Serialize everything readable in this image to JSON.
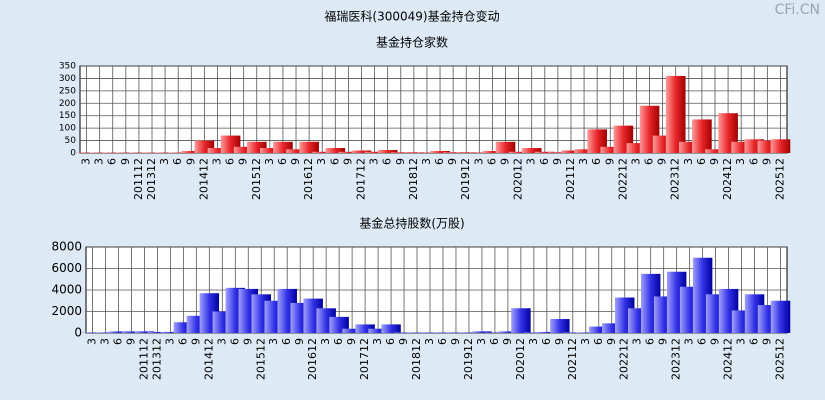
{
  "title": "福瑞医科(300049)基金持仓变动",
  "watermark": "CFi.CN",
  "chart_data": [
    {
      "type": "bar",
      "title": "基金持仓家数",
      "categories": [
        "3",
        "3",
        "6",
        "9",
        "201112",
        "201312",
        "3",
        "6",
        "9",
        "201412",
        "3",
        "6",
        "9",
        "201512",
        "3",
        "6",
        "9",
        "201612",
        "3",
        "6",
        "9",
        "201712",
        "3",
        "6",
        "9",
        "201812",
        "3",
        "6",
        "9",
        "201912",
        "3",
        "6",
        "9",
        "202012",
        "3",
        "6",
        "9",
        "202112",
        "3",
        "6",
        "9",
        "202212",
        "3",
        "6",
        "9",
        "202312",
        "3",
        "6",
        "9",
        "202412",
        "3",
        "6",
        "9",
        "202512"
      ],
      "values": [
        2,
        2,
        2,
        2,
        2,
        2,
        2,
        2,
        8,
        50,
        20,
        70,
        25,
        45,
        20,
        45,
        15,
        45,
        5,
        20,
        5,
        10,
        5,
        12,
        3,
        3,
        2,
        8,
        3,
        3,
        2,
        8,
        45,
        5,
        20,
        5,
        3,
        10,
        15,
        95,
        25,
        110,
        40,
        190,
        70,
        310,
        45,
        135,
        15,
        160,
        45,
        55,
        50,
        55
      ],
      "color": "#e8262a",
      "ylim": [
        0,
        350
      ],
      "yticks": [
        0,
        50,
        100,
        150,
        200,
        250,
        300,
        350
      ],
      "grid": true
    },
    {
      "type": "bar",
      "title": "基金总持股数(万股)",
      "categories": [
        "3",
        "3",
        "6",
        "9",
        "201112",
        "201312",
        "3",
        "6",
        "9",
        "201412",
        "3",
        "6",
        "9",
        "201512",
        "3",
        "6",
        "9",
        "201612",
        "3",
        "6",
        "9",
        "201712",
        "3",
        "6",
        "9",
        "201812",
        "3",
        "6",
        "9",
        "201912",
        "3",
        "6",
        "9",
        "202012",
        "3",
        "6",
        "9",
        "202112",
        "3",
        "6",
        "9",
        "202212",
        "3",
        "6",
        "9",
        "202312",
        "3",
        "6",
        "9",
        "202412",
        "3",
        "6",
        "9",
        "202512"
      ],
      "values": [
        50,
        50,
        150,
        150,
        150,
        100,
        100,
        1000,
        1600,
        3700,
        2000,
        4200,
        4100,
        3600,
        3000,
        4100,
        2800,
        3200,
        2300,
        1500,
        400,
        800,
        400,
        800,
        50,
        50,
        50,
        50,
        50,
        50,
        150,
        50,
        150,
        2300,
        50,
        100,
        1300,
        50,
        50,
        600,
        900,
        3300,
        2300,
        5500,
        3400,
        5700,
        4300,
        7000,
        3600,
        4100,
        2100,
        3600,
        2600,
        3000
      ],
      "color": "#3232e6",
      "ylim": [
        0,
        8000
      ],
      "yticks": [
        0,
        2000,
        4000,
        6000,
        8000
      ],
      "grid": true
    }
  ]
}
